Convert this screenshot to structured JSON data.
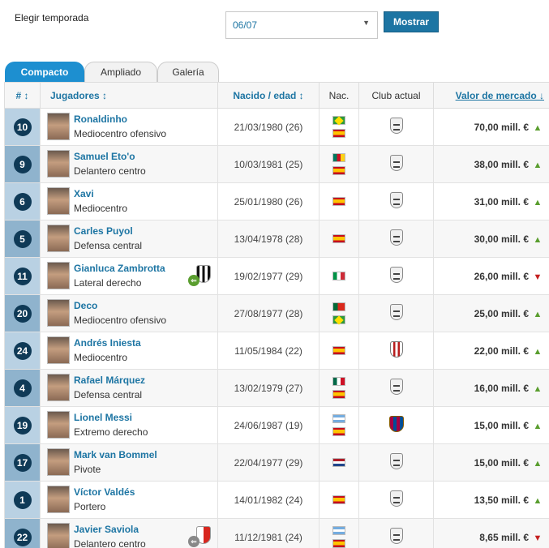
{
  "season": {
    "label": "Elegir temporada",
    "value": "06/07",
    "button": "Mostrar"
  },
  "tabs": [
    {
      "label": "Compacto",
      "active": true
    },
    {
      "label": "Ampliado",
      "active": false
    },
    {
      "label": "Galería",
      "active": false
    }
  ],
  "columns": {
    "num": "# ↕",
    "players": "Jugadores ↕",
    "born": "Nacido / edad ↕",
    "nat": "Nac.",
    "club": "Club actual",
    "value": "Valor de mercado ↓"
  },
  "players": [
    {
      "number": "10",
      "name": "Ronaldinho",
      "position": "Mediocentro ofensivo",
      "born": "21/03/1980 (26)",
      "flags": [
        "brazil",
        "spain"
      ],
      "club": "barcelona",
      "value": "70,00 mill. €",
      "trend": "up"
    },
    {
      "number": "9",
      "name": "Samuel Eto'o",
      "position": "Delantero centro",
      "born": "10/03/1981 (25)",
      "flags": [
        "cameroon",
        "spain"
      ],
      "club": "barcelona",
      "value": "38,00 mill. €",
      "trend": "up"
    },
    {
      "number": "6",
      "name": "Xavi",
      "position": "Mediocentro",
      "born": "25/01/1980 (26)",
      "flags": [
        "spain"
      ],
      "club": "barcelona",
      "value": "31,00 mill. €",
      "trend": "up"
    },
    {
      "number": "5",
      "name": "Carles Puyol",
      "position": "Defensa central",
      "born": "13/04/1978 (28)",
      "flags": [
        "spain"
      ],
      "club": "barcelona",
      "value": "30,00 mill. €",
      "trend": "up"
    },
    {
      "number": "11",
      "name": "Gianluca Zambrotta",
      "position": "Lateral derecho",
      "born": "19/02/1977 (29)",
      "flags": [
        "italy"
      ],
      "club": "barcelona",
      "value": "26,00 mill. €",
      "trend": "down",
      "transfer": "juventus"
    },
    {
      "number": "20",
      "name": "Deco",
      "position": "Mediocentro ofensivo",
      "born": "27/08/1977 (28)",
      "flags": [
        "portugal",
        "brazil"
      ],
      "club": "barcelona",
      "value": "25,00 mill. €",
      "trend": "up"
    },
    {
      "number": "24",
      "name": "Andrés Iniesta",
      "position": "Mediocentro",
      "born": "11/05/1984 (22)",
      "flags": [
        "spain"
      ],
      "club": "albacete",
      "value": "22,00 mill. €",
      "trend": "up"
    },
    {
      "number": "4",
      "name": "Rafael Márquez",
      "position": "Defensa central",
      "born": "13/02/1979 (27)",
      "flags": [
        "mexico",
        "spain"
      ],
      "club": "barcelona",
      "value": "16,00 mill. €",
      "trend": "up"
    },
    {
      "number": "19",
      "name": "Lionel Messi",
      "position": "Extremo derecho",
      "born": "24/06/1987 (19)",
      "flags": [
        "argentina",
        "spain"
      ],
      "club": "fcb",
      "value": "15,00 mill. €",
      "trend": "up"
    },
    {
      "number": "17",
      "name": "Mark van Bommel",
      "position": "Pivote",
      "born": "22/04/1977 (29)",
      "flags": [
        "netherlands"
      ],
      "club": "barcelona",
      "value": "15,00 mill. €",
      "trend": "up"
    },
    {
      "number": "1",
      "name": "Víctor Valdés",
      "position": "Portero",
      "born": "14/01/1982 (24)",
      "flags": [
        "spain"
      ],
      "club": "barcelona",
      "value": "13,50 mill. €",
      "trend": "up"
    },
    {
      "number": "22",
      "name": "Javier Saviola",
      "position": "Delantero centro",
      "born": "11/12/1981 (24)",
      "flags": [
        "argentina",
        "spain"
      ],
      "club": "barcelona",
      "value": "8,65 mill. €",
      "trend": "down",
      "transfer": "sevilla"
    }
  ]
}
